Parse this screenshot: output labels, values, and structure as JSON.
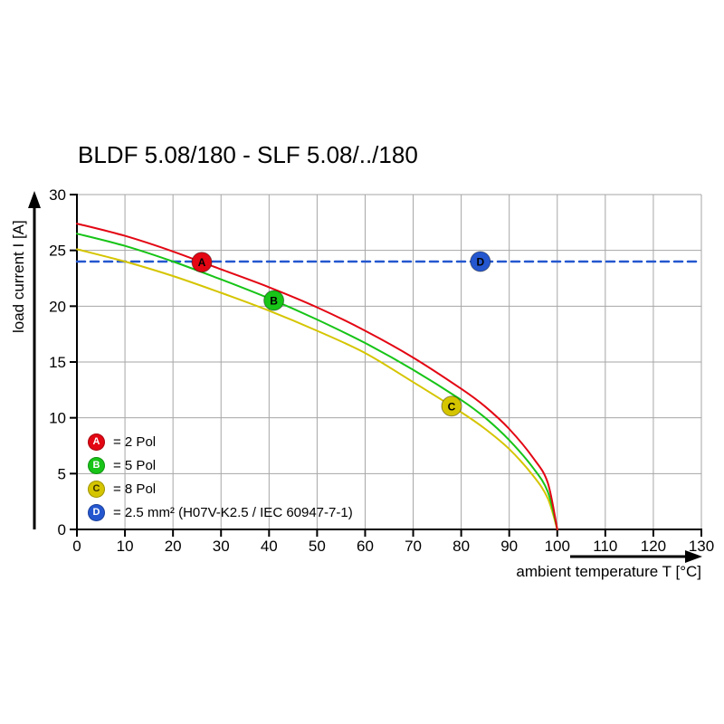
{
  "chart_data": {
    "type": "line",
    "title": "BLDF 5.08/180 - SLF 5.08/../180",
    "xlabel": "ambient temperature T [°C]",
    "ylabel": "load current I [A]",
    "xlim": [
      0,
      130
    ],
    "ylim": [
      0,
      30
    ],
    "xticks": [
      0,
      10,
      20,
      30,
      40,
      50,
      60,
      70,
      80,
      90,
      100,
      110,
      120,
      130
    ],
    "yticks": [
      0,
      5,
      10,
      15,
      20,
      25,
      30
    ],
    "grid": true,
    "grid_color": "#a6a6a6",
    "axis_color": "#000000",
    "legend_position": "bottom-left-inside",
    "series": [
      {
        "name": "A",
        "legend": "= 2 Pol",
        "color": "#e30613",
        "letter_color": "#ffffff",
        "style": "solid",
        "marker_x": 26,
        "points": [
          [
            0,
            27.4
          ],
          [
            10,
            26.3
          ],
          [
            20,
            24.9
          ],
          [
            30,
            23.3
          ],
          [
            40,
            21.7
          ],
          [
            50,
            19.9
          ],
          [
            60,
            17.8
          ],
          [
            70,
            15.4
          ],
          [
            80,
            12.6
          ],
          [
            85,
            11.0
          ],
          [
            90,
            9.0
          ],
          [
            95,
            6.4
          ],
          [
            98,
            4.2
          ],
          [
            100,
            0
          ]
        ]
      },
      {
        "name": "B",
        "legend": "= 5 Pol",
        "color": "#17c417",
        "letter_color": "#ffffff",
        "style": "solid",
        "marker_x": 41,
        "points": [
          [
            0,
            26.5
          ],
          [
            10,
            25.4
          ],
          [
            20,
            24.0
          ],
          [
            30,
            22.4
          ],
          [
            40,
            20.7
          ],
          [
            50,
            18.8
          ],
          [
            60,
            16.7
          ],
          [
            70,
            14.3
          ],
          [
            80,
            11.6
          ],
          [
            85,
            10.0
          ],
          [
            90,
            8.0
          ],
          [
            95,
            5.5
          ],
          [
            98,
            3.4
          ],
          [
            100,
            0
          ]
        ]
      },
      {
        "name": "C",
        "legend": "= 8 Pol",
        "color": "#d5c500",
        "letter_color": "#3a3000",
        "style": "solid",
        "marker_x": 78,
        "points": [
          [
            0,
            25.1
          ],
          [
            10,
            24.0
          ],
          [
            20,
            22.7
          ],
          [
            30,
            21.2
          ],
          [
            40,
            19.6
          ],
          [
            50,
            17.8
          ],
          [
            60,
            15.8
          ],
          [
            70,
            13.2
          ],
          [
            80,
            10.5
          ],
          [
            85,
            9.0
          ],
          [
            90,
            7.2
          ],
          [
            95,
            4.8
          ],
          [
            98,
            2.8
          ],
          [
            100,
            0
          ]
        ]
      },
      {
        "name": "D",
        "legend": "= 2.5 mm² (H07V-K2.5 / IEC 60947-7-1)",
        "color": "#2457cf",
        "letter_color": "#ffffff",
        "style": "dashed",
        "marker_x": 84,
        "points": [
          [
            0,
            24
          ],
          [
            130,
            24
          ]
        ]
      }
    ]
  }
}
